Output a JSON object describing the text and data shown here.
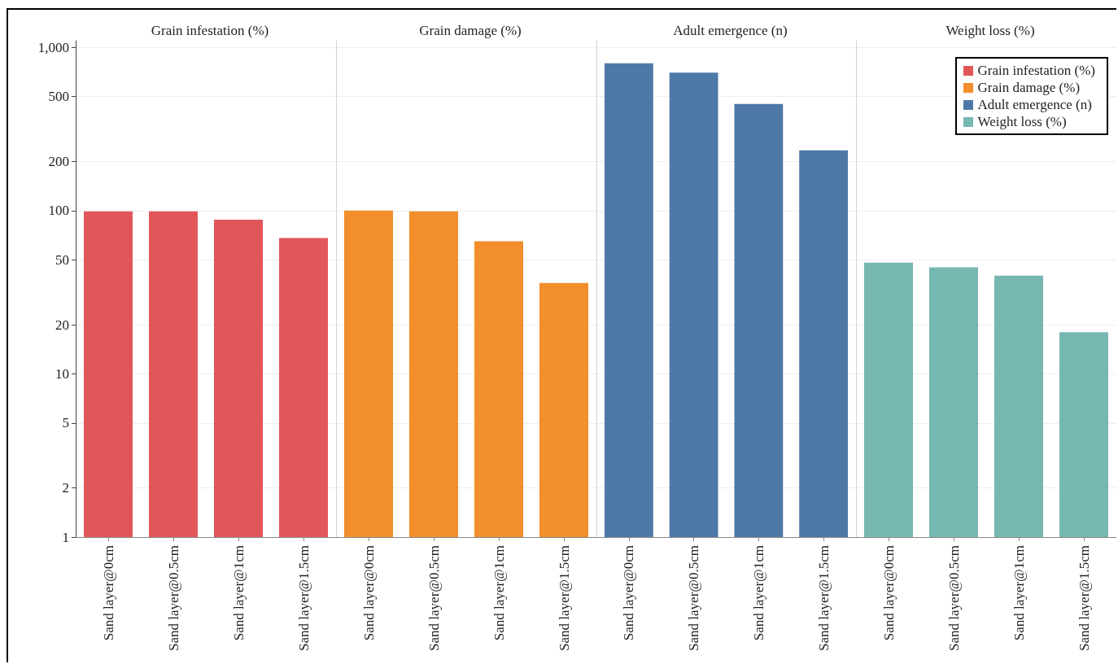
{
  "chart_data": [
    {
      "type": "bar",
      "title": "Grain infestation (%)",
      "categories": [
        "Sand layer@0cm",
        "Sand layer@0.5cm",
        "Sand layer@1cm",
        "Sand layer@1.5cm"
      ],
      "series": [
        {
          "name": "Grain infestation (%)",
          "color": "#e15759",
          "values": [
            99,
            99,
            88,
            68
          ]
        }
      ],
      "log": "y",
      "ylim": [
        1,
        1100
      ],
      "yticks": [
        1,
        2,
        5,
        10,
        20,
        50,
        100,
        200,
        500,
        {
          "value": 1000,
          "label": "1,000"
        }
      ],
      "grid": "y"
    },
    {
      "type": "bar",
      "title": "Grain damage (%)",
      "categories": [
        "Sand layer@0cm",
        "Sand layer@0.5cm",
        "Sand layer@1cm",
        "Sand layer@1.5cm"
      ],
      "series": [
        {
          "name": "Grain damage (%)",
          "color": "#f28e2b",
          "values": [
            100,
            99,
            65,
            36
          ]
        }
      ],
      "log": "y",
      "ylim": [
        1,
        1100
      ],
      "yticks": [
        1,
        2,
        5,
        10,
        20,
        50,
        100,
        200,
        500,
        1000
      ],
      "grid": "y",
      "tick_labels": "x"
    },
    {
      "type": "bar",
      "title": "Adult emergence (n)",
      "categories": [
        "Sand layer@0cm",
        "Sand layer@0.5cm",
        "Sand layer@1cm",
        "Sand layer@1.5cm"
      ],
      "series": [
        {
          "name": "Adult emergence (n)",
          "color": "#4e79a7",
          "values": [
            800,
            700,
            450,
            234
          ]
        }
      ],
      "log": "y",
      "ylim": [
        1,
        1100
      ],
      "yticks": [
        1,
        2,
        5,
        10,
        20,
        50,
        100,
        200,
        500,
        1000
      ],
      "grid": "y",
      "tick_labels": "x"
    },
    {
      "type": "bar",
      "title": "Weight loss (%)",
      "categories": [
        "Sand layer@0cm",
        "Sand layer@0.5cm",
        "Sand layer@1cm",
        "Sand layer@1.5cm"
      ],
      "series": [
        {
          "name": "Weight loss (%)",
          "color": "#76b7b2",
          "values": [
            48,
            45,
            40,
            18
          ]
        }
      ],
      "log": "y",
      "ylim": [
        1,
        1100
      ],
      "yticks": [
        1,
        2,
        5,
        10,
        20,
        50,
        100,
        200,
        500,
        1000
      ],
      "grid": "y",
      "tick_labels": "x",
      "legend": "top right"
    }
  ]
}
